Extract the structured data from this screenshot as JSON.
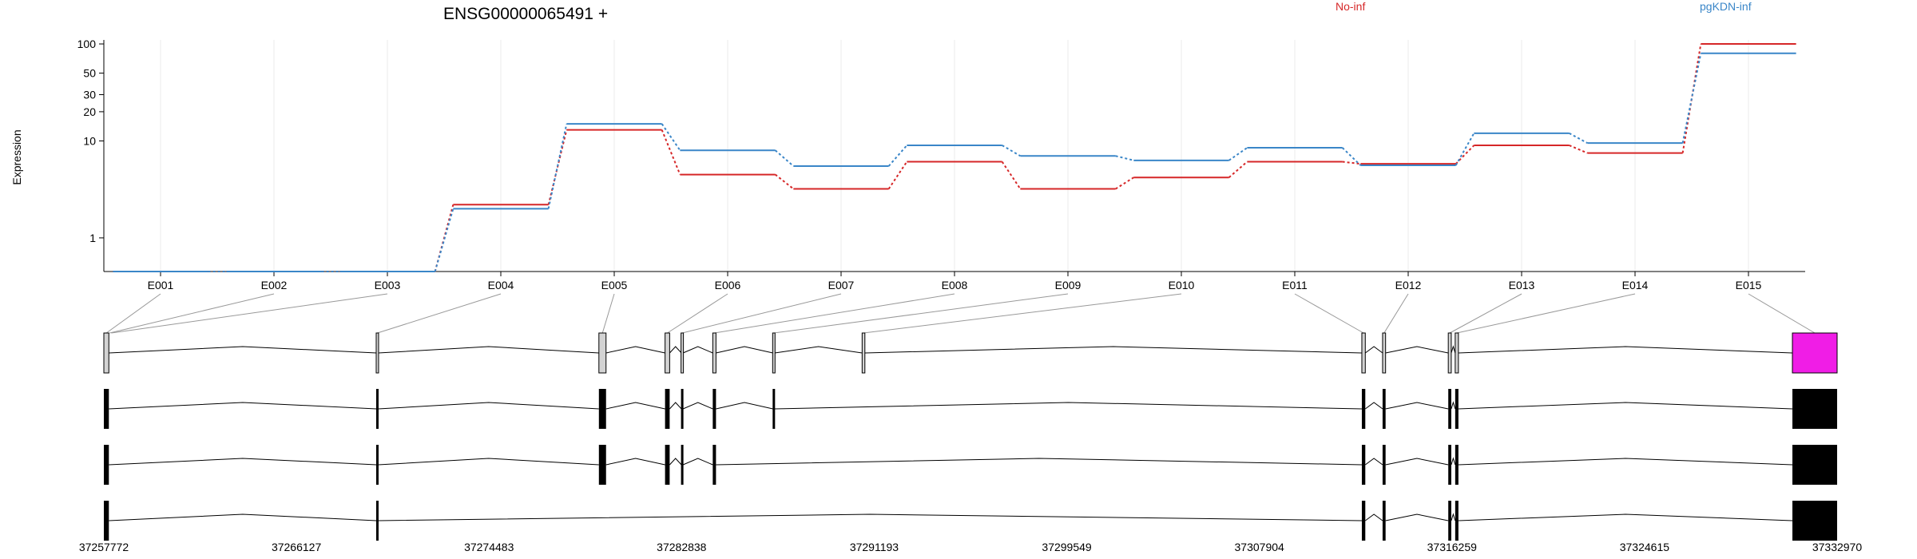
{
  "chart_data": {
    "type": "line",
    "title": "ENSG00000065491 +",
    "ylabel": "Expression",
    "yscale": "log",
    "ylim": [
      0.45,
      110
    ],
    "y_ticks": [
      1,
      10,
      20,
      30,
      50,
      100
    ],
    "y_tick_labels": [
      "1",
      "10",
      "20",
      "30",
      "50",
      "100"
    ],
    "grid": "vertical",
    "categories": [
      "E001",
      "E002",
      "E003",
      "E004",
      "E005",
      "E006",
      "E007",
      "E008",
      "E009",
      "E010",
      "E011",
      "E012",
      "E013",
      "E014",
      "E015"
    ],
    "series": [
      {
        "name": "No-inf",
        "color": "#d62728",
        "values": [
          0.4,
          0.4,
          0.4,
          2.2,
          13,
          4.5,
          3.2,
          6.1,
          3.2,
          4.2,
          6.1,
          5.8,
          9.0,
          7.5,
          100
        ]
      },
      {
        "name": "pgKDN-inf",
        "color": "#3a86c8",
        "values": [
          0.4,
          0.4,
          0.4,
          2.0,
          15,
          8.0,
          5.5,
          9.0,
          7.0,
          6.3,
          8.5,
          5.6,
          12,
          9.5,
          80
        ]
      }
    ],
    "legend": [
      {
        "label": "No-inf",
        "color": "#d62728",
        "position": "top-center"
      },
      {
        "label": "pgKDN-inf",
        "color": "#3a86c8",
        "position": "top-right"
      }
    ],
    "gene_model": {
      "coordinate_ticks": [
        "37257772",
        "37266127",
        "37274483",
        "37282838",
        "37291193",
        "37299549",
        "37307904",
        "37316259",
        "37324615",
        "37332970"
      ],
      "coord_start": 37257772,
      "coord_end": 37332970,
      "highlight_color": "#f01de6",
      "exon_bins": [
        {
          "id": "E001",
          "start": 37257772,
          "end": 37257990
        },
        {
          "id": "E002",
          "start": 37257990,
          "end": 37258060
        },
        {
          "id": "E003",
          "start": 37258060,
          "end": 37258130
        },
        {
          "id": "E004",
          "start": 37269600,
          "end": 37269680
        },
        {
          "id": "E005",
          "start": 37279250,
          "end": 37279560
        },
        {
          "id": "E006",
          "start": 37282120,
          "end": 37282320
        },
        {
          "id": "E007",
          "start": 37282830,
          "end": 37282900
        },
        {
          "id": "E008",
          "start": 37284190,
          "end": 37284330
        },
        {
          "id": "E009",
          "start": 37286800,
          "end": 37286880
        },
        {
          "id": "E010",
          "start": 37290670,
          "end": 37290790
        },
        {
          "id": "E011",
          "start": 37312350,
          "end": 37312500
        },
        {
          "id": "E012",
          "start": 37313250,
          "end": 37313380
        },
        {
          "id": "E013",
          "start": 37316100,
          "end": 37316230
        },
        {
          "id": "E014",
          "start": 37316400,
          "end": 37316540
        },
        {
          "id": "E015",
          "start": 37331030,
          "end": 37332970
        }
      ],
      "transcripts": [
        {
          "exons": [
            [
              37257772,
              37257990
            ],
            [
              37269600,
              37269680
            ],
            [
              37279250,
              37279560
            ],
            [
              37282120,
              37282320
            ],
            [
              37282830,
              37282900
            ],
            [
              37284190,
              37284330
            ],
            [
              37286800,
              37286880
            ],
            [
              37290670,
              37290790
            ],
            [
              37312350,
              37312500
            ],
            [
              37313250,
              37313380
            ],
            [
              37316100,
              37316230
            ],
            [
              37316400,
              37316540
            ],
            [
              37331030,
              37332970
            ]
          ]
        },
        {
          "exons": [
            [
              37257772,
              37257990
            ],
            [
              37269600,
              37269680
            ],
            [
              37279250,
              37279560
            ],
            [
              37282120,
              37282320
            ],
            [
              37282830,
              37282900
            ],
            [
              37284190,
              37284330
            ],
            [
              37286800,
              37286880
            ],
            [
              37312350,
              37312500
            ],
            [
              37313250,
              37313380
            ],
            [
              37316100,
              37316230
            ],
            [
              37316400,
              37316540
            ],
            [
              37331030,
              37332970
            ]
          ]
        },
        {
          "exons": [
            [
              37257772,
              37257990
            ],
            [
              37269600,
              37269680
            ],
            [
              37279250,
              37279560
            ],
            [
              37282120,
              37282320
            ],
            [
              37282830,
              37282900
            ],
            [
              37284190,
              37284330
            ],
            [
              37312350,
              37312500
            ],
            [
              37313250,
              37313380
            ],
            [
              37316100,
              37316230
            ],
            [
              37316400,
              37316540
            ],
            [
              37331030,
              37332970
            ]
          ]
        },
        {
          "exons": [
            [
              37257772,
              37257990
            ],
            [
              37269600,
              37269680
            ],
            [
              37312350,
              37312500
            ],
            [
              37313250,
              37313380
            ],
            [
              37316100,
              37316230
            ],
            [
              37316400,
              37316540
            ],
            [
              37331030,
              37332970
            ]
          ]
        }
      ]
    }
  }
}
